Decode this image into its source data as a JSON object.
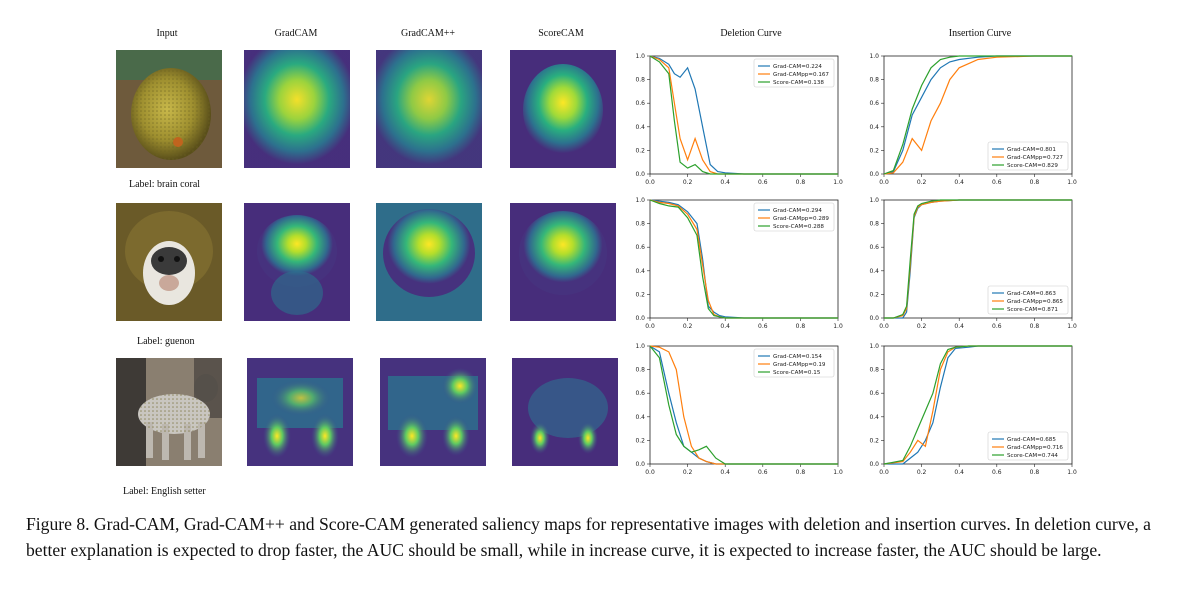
{
  "figure": {
    "headers": {
      "input": "Input",
      "gradcam": "GradCAM",
      "gradcampp": "GradCAM++",
      "scorecam": "ScoreCAM",
      "deletion": "Deletion Curve",
      "insertion": "Insertion Curve"
    },
    "rows": [
      {
        "label": "Label: brain coral",
        "deletion_legend": [
          "Grad-CAM=0.224",
          "Grad-CAMpp=0.167",
          "Score-CAM=0.138"
        ],
        "insertion_legend": [
          "Grad-CAM=0.801",
          "Grad-CAMpp=0.727",
          "Score-CAM=0.829"
        ]
      },
      {
        "label": "Label: guenon",
        "deletion_legend": [
          "Grad-CAM=0.294",
          "Grad-CAMpp=0.289",
          "Score-CAM=0.288"
        ],
        "insertion_legend": [
          "Grad-CAM=0.863",
          "Grad-CAMpp=0.865",
          "Score-CAM=0.871"
        ]
      },
      {
        "label": "Label: English setter",
        "deletion_legend": [
          "Grad-CAM=0.154",
          "Grad-CAMpp=0.19",
          "Score-CAM=0.15"
        ],
        "insertion_legend": [
          "Grad-CAM=0.685",
          "Grad-CAMpp=0.716",
          "Score-CAM=0.744"
        ]
      }
    ],
    "ticks": [
      "0.0",
      "0.2",
      "0.4",
      "0.6",
      "0.8",
      "1.0"
    ],
    "colors": {
      "gradcam": "#1f77b4",
      "gradcampp": "#ff7f0e",
      "scorecam": "#2ca02c"
    }
  },
  "chart_data": [
    {
      "type": "line",
      "title": "Deletion Curve",
      "row_label": "Label: brain coral",
      "xlim": [
        0,
        1
      ],
      "ylim": [
        0,
        1
      ],
      "x": [
        0.0,
        0.05,
        0.1,
        0.13,
        0.16,
        0.2,
        0.24,
        0.28,
        0.32,
        0.36,
        0.4,
        0.5,
        0.6,
        0.8,
        1.0
      ],
      "series": [
        {
          "name": "Grad-CAM=0.224",
          "values": [
            1.0,
            0.98,
            0.93,
            0.85,
            0.82,
            0.9,
            0.72,
            0.4,
            0.08,
            0.02,
            0.01,
            0.0,
            0.0,
            0.0,
            0.0
          ]
        },
        {
          "name": "Grad-CAMpp=0.167",
          "values": [
            1.0,
            0.97,
            0.9,
            0.6,
            0.3,
            0.12,
            0.3,
            0.12,
            0.02,
            0.0,
            0.0,
            0.0,
            0.0,
            0.0,
            0.0
          ]
        },
        {
          "name": "Score-CAM=0.138",
          "values": [
            1.0,
            0.95,
            0.85,
            0.45,
            0.1,
            0.05,
            0.08,
            0.02,
            0.0,
            0.0,
            0.0,
            0.0,
            0.0,
            0.0,
            0.0
          ]
        }
      ]
    },
    {
      "type": "line",
      "title": "Insertion Curve",
      "row_label": "Label: brain coral",
      "xlim": [
        0,
        1
      ],
      "ylim": [
        0,
        1
      ],
      "x": [
        0.0,
        0.05,
        0.1,
        0.15,
        0.2,
        0.25,
        0.3,
        0.35,
        0.4,
        0.5,
        0.6,
        0.8,
        1.0
      ],
      "series": [
        {
          "name": "Grad-CAM=0.801",
          "values": [
            0.0,
            0.02,
            0.2,
            0.5,
            0.65,
            0.8,
            0.9,
            0.95,
            0.97,
            0.99,
            1.0,
            1.0,
            1.0
          ]
        },
        {
          "name": "Grad-CAMpp=0.727",
          "values": [
            0.0,
            0.01,
            0.1,
            0.3,
            0.2,
            0.45,
            0.6,
            0.8,
            0.9,
            0.97,
            0.99,
            1.0,
            1.0
          ]
        },
        {
          "name": "Score-CAM=0.829",
          "values": [
            0.0,
            0.03,
            0.25,
            0.55,
            0.75,
            0.9,
            0.97,
            0.99,
            1.0,
            1.0,
            1.0,
            1.0,
            1.0
          ]
        }
      ]
    },
    {
      "type": "line",
      "title": "Deletion Curve",
      "row_label": "Label: guenon",
      "xlim": [
        0,
        1
      ],
      "ylim": [
        0,
        1
      ],
      "x": [
        0.0,
        0.05,
        0.1,
        0.15,
        0.2,
        0.25,
        0.28,
        0.31,
        0.34,
        0.37,
        0.4,
        0.5,
        0.6,
        0.8,
        1.0
      ],
      "series": [
        {
          "name": "Grad-CAM=0.294",
          "values": [
            1.0,
            0.99,
            0.98,
            0.96,
            0.9,
            0.8,
            0.5,
            0.1,
            0.05,
            0.02,
            0.01,
            0.0,
            0.0,
            0.0,
            0.0
          ]
        },
        {
          "name": "Grad-CAMpp=0.289",
          "values": [
            1.0,
            0.98,
            0.97,
            0.95,
            0.88,
            0.75,
            0.45,
            0.15,
            0.03,
            0.01,
            0.0,
            0.0,
            0.0,
            0.0,
            0.0
          ]
        },
        {
          "name": "Score-CAM=0.288",
          "values": [
            1.0,
            0.97,
            0.95,
            0.94,
            0.85,
            0.7,
            0.35,
            0.08,
            0.02,
            0.01,
            0.0,
            0.0,
            0.0,
            0.0,
            0.0
          ]
        }
      ]
    },
    {
      "type": "line",
      "title": "Insertion Curve",
      "row_label": "Label: guenon",
      "xlim": [
        0,
        1
      ],
      "ylim": [
        0,
        1
      ],
      "x": [
        0.0,
        0.05,
        0.1,
        0.12,
        0.14,
        0.16,
        0.18,
        0.2,
        0.25,
        0.3,
        0.4,
        0.6,
        0.8,
        1.0
      ],
      "series": [
        {
          "name": "Grad-CAM=0.863",
          "values": [
            0.0,
            0.0,
            0.0,
            0.05,
            0.4,
            0.85,
            0.93,
            0.96,
            0.98,
            0.99,
            1.0,
            1.0,
            1.0,
            1.0
          ]
        },
        {
          "name": "Grad-CAMpp=0.865",
          "values": [
            0.0,
            0.0,
            0.02,
            0.08,
            0.45,
            0.86,
            0.94,
            0.96,
            0.98,
            0.99,
            1.0,
            1.0,
            1.0,
            1.0
          ]
        },
        {
          "name": "Score-CAM=0.871",
          "values": [
            0.0,
            0.0,
            0.03,
            0.1,
            0.5,
            0.88,
            0.95,
            0.97,
            0.99,
            1.0,
            1.0,
            1.0,
            1.0,
            1.0
          ]
        }
      ]
    },
    {
      "type": "line",
      "title": "Deletion Curve",
      "row_label": "Label: English setter",
      "xlim": [
        0,
        1
      ],
      "ylim": [
        0,
        1
      ],
      "x": [
        0.0,
        0.05,
        0.1,
        0.14,
        0.18,
        0.22,
        0.26,
        0.3,
        0.35,
        0.4,
        0.5,
        0.6,
        0.8,
        1.0
      ],
      "series": [
        {
          "name": "Grad-CAM=0.154",
          "values": [
            1.0,
            0.95,
            0.6,
            0.35,
            0.15,
            0.1,
            0.05,
            0.02,
            0.0,
            0.0,
            0.0,
            0.0,
            0.0,
            0.0
          ]
        },
        {
          "name": "Grad-CAMpp=0.19",
          "values": [
            1.0,
            0.99,
            0.95,
            0.8,
            0.4,
            0.15,
            0.05,
            0.02,
            0.0,
            0.0,
            0.0,
            0.0,
            0.0,
            0.0
          ]
        },
        {
          "name": "Score-CAM=0.15",
          "values": [
            1.0,
            0.9,
            0.5,
            0.25,
            0.15,
            0.1,
            0.12,
            0.15,
            0.05,
            0.0,
            0.0,
            0.0,
            0.0,
            0.0
          ]
        }
      ]
    },
    {
      "type": "line",
      "title": "Insertion Curve",
      "row_label": "Label: English setter",
      "xlim": [
        0,
        1
      ],
      "ylim": [
        0,
        1
      ],
      "x": [
        0.0,
        0.1,
        0.14,
        0.18,
        0.22,
        0.26,
        0.3,
        0.34,
        0.38,
        0.45,
        0.5,
        0.6,
        0.8,
        1.0
      ],
      "series": [
        {
          "name": "Grad-CAM=0.685",
          "values": [
            0.0,
            0.0,
            0.05,
            0.1,
            0.2,
            0.35,
            0.65,
            0.9,
            0.98,
            0.99,
            1.0,
            1.0,
            1.0,
            1.0
          ]
        },
        {
          "name": "Grad-CAMpp=0.716",
          "values": [
            0.0,
            0.02,
            0.1,
            0.2,
            0.15,
            0.45,
            0.8,
            0.95,
            0.99,
            1.0,
            1.0,
            1.0,
            1.0,
            1.0
          ]
        },
        {
          "name": "Score-CAM=0.744",
          "values": [
            0.0,
            0.03,
            0.15,
            0.3,
            0.45,
            0.6,
            0.85,
            0.97,
            0.99,
            1.0,
            1.0,
            1.0,
            1.0,
            1.0
          ]
        }
      ]
    }
  ],
  "caption": "Figure 8. Grad-CAM, Grad-CAM++ and Score-CAM generated saliency maps for representative images with deletion and insertion curves. In deletion curve, a better explanation is expected to drop faster, the AUC should be small, while in increase curve, it is expected to increase faster, the AUC should be large."
}
